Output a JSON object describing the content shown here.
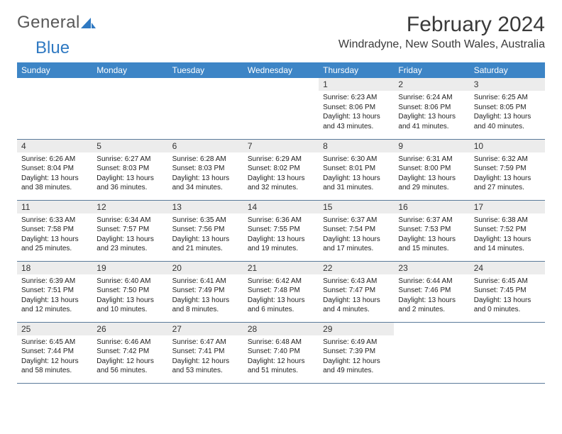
{
  "brand": {
    "part1": "General",
    "part2": "Blue"
  },
  "title": "February 2024",
  "location": "Windradyne, New South Wales, Australia",
  "colors": {
    "header_bg": "#3d85c6",
    "header_text": "#ffffff",
    "daynum_bg": "#ececec",
    "row_border": "#5a7a9a",
    "logo_gray": "#585858",
    "logo_blue": "#2f79c2"
  },
  "weekdays": [
    "Sunday",
    "Monday",
    "Tuesday",
    "Wednesday",
    "Thursday",
    "Friday",
    "Saturday"
  ],
  "weeks": [
    [
      null,
      null,
      null,
      null,
      {
        "n": "1",
        "sunrise": "6:23 AM",
        "sunset": "8:06 PM",
        "daylight": "13 hours and 43 minutes."
      },
      {
        "n": "2",
        "sunrise": "6:24 AM",
        "sunset": "8:06 PM",
        "daylight": "13 hours and 41 minutes."
      },
      {
        "n": "3",
        "sunrise": "6:25 AM",
        "sunset": "8:05 PM",
        "daylight": "13 hours and 40 minutes."
      }
    ],
    [
      {
        "n": "4",
        "sunrise": "6:26 AM",
        "sunset": "8:04 PM",
        "daylight": "13 hours and 38 minutes."
      },
      {
        "n": "5",
        "sunrise": "6:27 AM",
        "sunset": "8:03 PM",
        "daylight": "13 hours and 36 minutes."
      },
      {
        "n": "6",
        "sunrise": "6:28 AM",
        "sunset": "8:03 PM",
        "daylight": "13 hours and 34 minutes."
      },
      {
        "n": "7",
        "sunrise": "6:29 AM",
        "sunset": "8:02 PM",
        "daylight": "13 hours and 32 minutes."
      },
      {
        "n": "8",
        "sunrise": "6:30 AM",
        "sunset": "8:01 PM",
        "daylight": "13 hours and 31 minutes."
      },
      {
        "n": "9",
        "sunrise": "6:31 AM",
        "sunset": "8:00 PM",
        "daylight": "13 hours and 29 minutes."
      },
      {
        "n": "10",
        "sunrise": "6:32 AM",
        "sunset": "7:59 PM",
        "daylight": "13 hours and 27 minutes."
      }
    ],
    [
      {
        "n": "11",
        "sunrise": "6:33 AM",
        "sunset": "7:58 PM",
        "daylight": "13 hours and 25 minutes."
      },
      {
        "n": "12",
        "sunrise": "6:34 AM",
        "sunset": "7:57 PM",
        "daylight": "13 hours and 23 minutes."
      },
      {
        "n": "13",
        "sunrise": "6:35 AM",
        "sunset": "7:56 PM",
        "daylight": "13 hours and 21 minutes."
      },
      {
        "n": "14",
        "sunrise": "6:36 AM",
        "sunset": "7:55 PM",
        "daylight": "13 hours and 19 minutes."
      },
      {
        "n": "15",
        "sunrise": "6:37 AM",
        "sunset": "7:54 PM",
        "daylight": "13 hours and 17 minutes."
      },
      {
        "n": "16",
        "sunrise": "6:37 AM",
        "sunset": "7:53 PM",
        "daylight": "13 hours and 15 minutes."
      },
      {
        "n": "17",
        "sunrise": "6:38 AM",
        "sunset": "7:52 PM",
        "daylight": "13 hours and 14 minutes."
      }
    ],
    [
      {
        "n": "18",
        "sunrise": "6:39 AM",
        "sunset": "7:51 PM",
        "daylight": "13 hours and 12 minutes."
      },
      {
        "n": "19",
        "sunrise": "6:40 AM",
        "sunset": "7:50 PM",
        "daylight": "13 hours and 10 minutes."
      },
      {
        "n": "20",
        "sunrise": "6:41 AM",
        "sunset": "7:49 PM",
        "daylight": "13 hours and 8 minutes."
      },
      {
        "n": "21",
        "sunrise": "6:42 AM",
        "sunset": "7:48 PM",
        "daylight": "13 hours and 6 minutes."
      },
      {
        "n": "22",
        "sunrise": "6:43 AM",
        "sunset": "7:47 PM",
        "daylight": "13 hours and 4 minutes."
      },
      {
        "n": "23",
        "sunrise": "6:44 AM",
        "sunset": "7:46 PM",
        "daylight": "13 hours and 2 minutes."
      },
      {
        "n": "24",
        "sunrise": "6:45 AM",
        "sunset": "7:45 PM",
        "daylight": "13 hours and 0 minutes."
      }
    ],
    [
      {
        "n": "25",
        "sunrise": "6:45 AM",
        "sunset": "7:44 PM",
        "daylight": "12 hours and 58 minutes."
      },
      {
        "n": "26",
        "sunrise": "6:46 AM",
        "sunset": "7:42 PM",
        "daylight": "12 hours and 56 minutes."
      },
      {
        "n": "27",
        "sunrise": "6:47 AM",
        "sunset": "7:41 PM",
        "daylight": "12 hours and 53 minutes."
      },
      {
        "n": "28",
        "sunrise": "6:48 AM",
        "sunset": "7:40 PM",
        "daylight": "12 hours and 51 minutes."
      },
      {
        "n": "29",
        "sunrise": "6:49 AM",
        "sunset": "7:39 PM",
        "daylight": "12 hours and 49 minutes."
      },
      null,
      null
    ]
  ],
  "labels": {
    "sunrise": "Sunrise:",
    "sunset": "Sunset:",
    "daylight": "Daylight:"
  }
}
